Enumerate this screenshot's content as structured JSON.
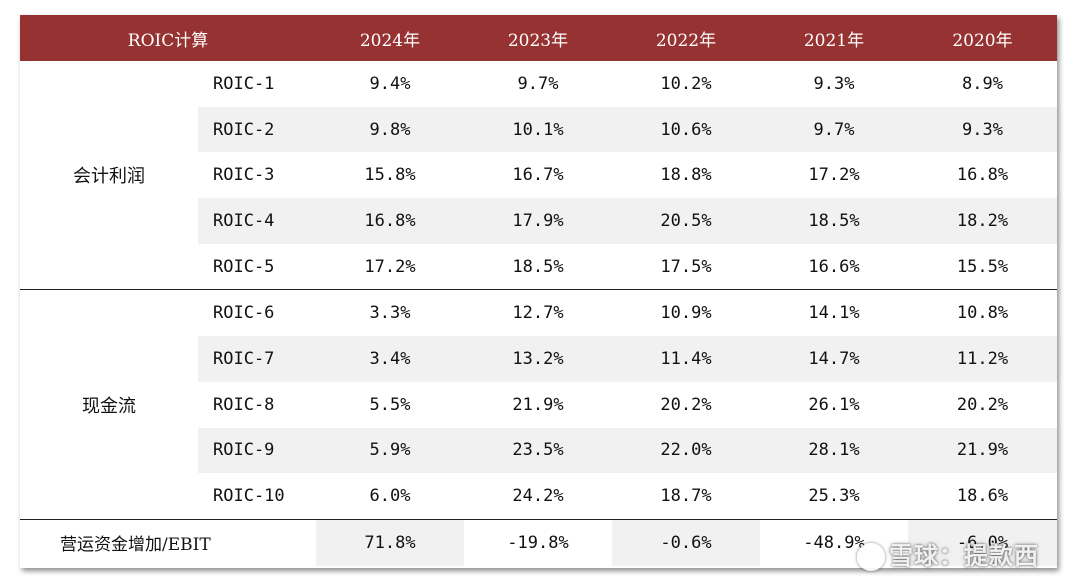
{
  "header": {
    "title": "ROIC计算",
    "years": [
      "2024年",
      "2023年",
      "2022年",
      "2021年",
      "2020年"
    ]
  },
  "groups": [
    {
      "label": "会计利润",
      "rows": [
        {
          "name": "ROIC-1",
          "values": [
            "9.4%",
            "9.7%",
            "10.2%",
            "9.3%",
            "8.9%"
          ]
        },
        {
          "name": "ROIC-2",
          "values": [
            "9.8%",
            "10.1%",
            "10.6%",
            "9.7%",
            "9.3%"
          ]
        },
        {
          "name": "ROIC-3",
          "values": [
            "15.8%",
            "16.7%",
            "18.8%",
            "17.2%",
            "16.8%"
          ]
        },
        {
          "name": "ROIC-4",
          "values": [
            "16.8%",
            "17.9%",
            "20.5%",
            "18.5%",
            "18.2%"
          ]
        },
        {
          "name": "ROIC-5",
          "values": [
            "17.2%",
            "18.5%",
            "17.5%",
            "16.6%",
            "15.5%"
          ]
        }
      ]
    },
    {
      "label": "现金流",
      "rows": [
        {
          "name": "ROIC-6",
          "values": [
            "3.3%",
            "12.7%",
            "10.9%",
            "14.1%",
            "10.8%"
          ]
        },
        {
          "name": "ROIC-7",
          "values": [
            "3.4%",
            "13.2%",
            "11.4%",
            "14.7%",
            "11.2%"
          ]
        },
        {
          "name": "ROIC-8",
          "values": [
            "5.5%",
            "21.9%",
            "20.2%",
            "26.1%",
            "20.2%"
          ]
        },
        {
          "name": "ROIC-9",
          "values": [
            "5.9%",
            "23.5%",
            "22.0%",
            "28.1%",
            "21.9%"
          ]
        },
        {
          "name": "ROIC-10",
          "values": [
            "6.0%",
            "24.2%",
            "18.7%",
            "25.3%",
            "18.6%"
          ]
        }
      ]
    }
  ],
  "footer_row": {
    "label": "营运资金增加/EBIT",
    "values": [
      "71.8%",
      "-19.8%",
      "-0.6%",
      "-48.9%",
      "-6.0%"
    ]
  },
  "watermark": "雪球：提款西",
  "colors": {
    "header_bg": "#973232",
    "shade": "#f1f1f1"
  }
}
